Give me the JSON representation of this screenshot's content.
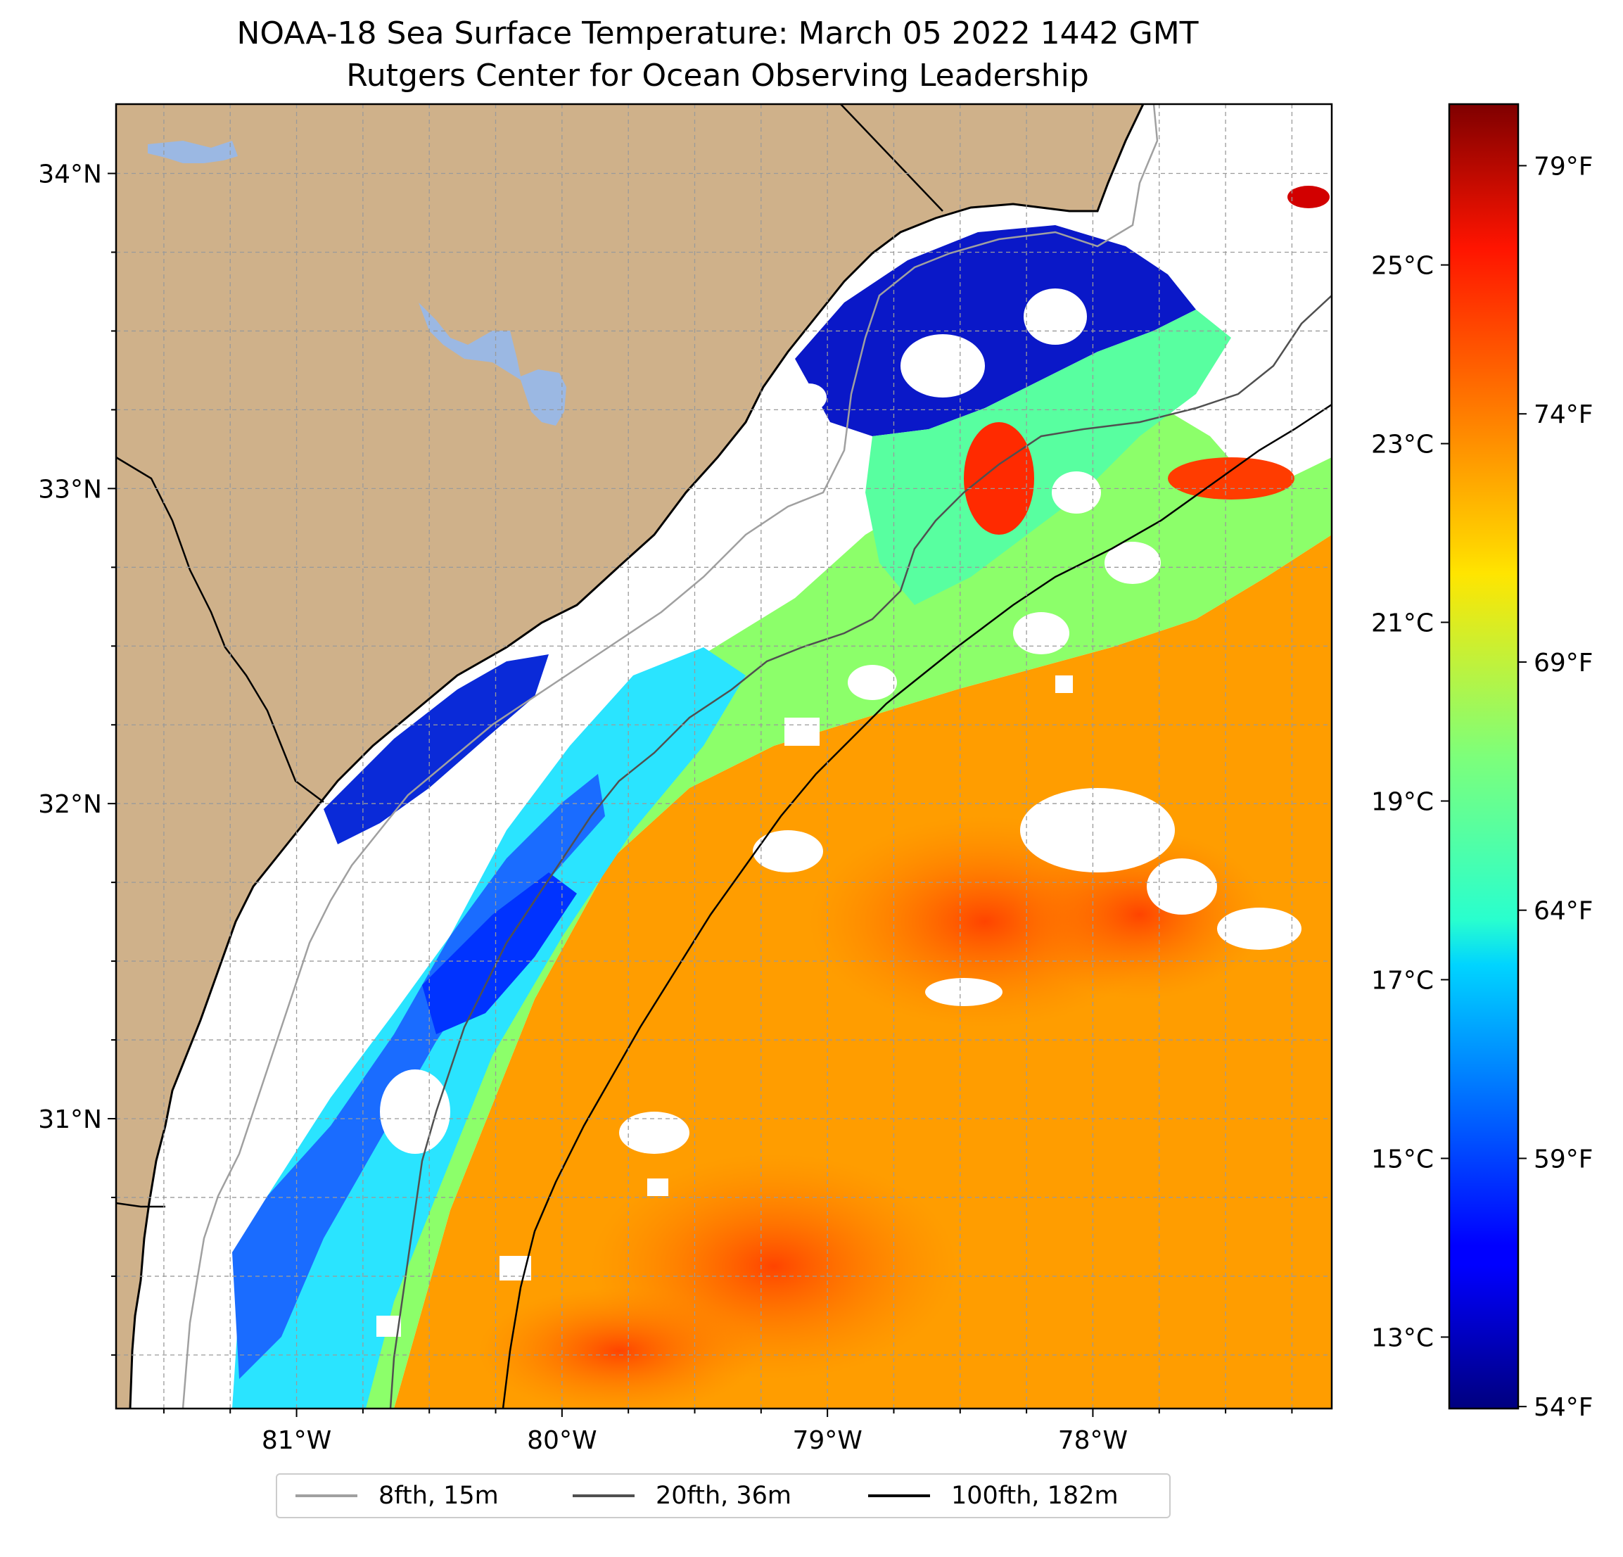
{
  "title_line1": "NOAA-18 Sea Surface Temperature: March 05 2022 1442 GMT",
  "title_line2": "Rutgers Center for Ocean Observing Leadership",
  "map": {
    "lon_range": [
      -81.68,
      -77.1
    ],
    "lat_range": [
      30.08,
      34.22
    ],
    "lat_ticks": [
      {
        "value": 34,
        "label": "34°N"
      },
      {
        "value": 33,
        "label": "33°N"
      },
      {
        "value": 32,
        "label": "32°N"
      },
      {
        "value": 31,
        "label": "31°N"
      }
    ],
    "lon_ticks": [
      {
        "value": -81,
        "label": "81°W"
      },
      {
        "value": -80,
        "label": "80°W"
      },
      {
        "value": -79,
        "label": "79°W"
      },
      {
        "value": -78,
        "label": "78°W"
      }
    ],
    "gridlines": true,
    "land_color": "#cfb18a",
    "lake_color": "#9bb8e3",
    "ocean_nodata_color": "#ffffff"
  },
  "colorbar": {
    "colormap": "jet",
    "range_c": [
      12.2,
      26.8
    ],
    "celsius_ticks": [
      {
        "value": 25,
        "label": "25°C"
      },
      {
        "value": 23,
        "label": "23°C"
      },
      {
        "value": 21,
        "label": "21°C"
      },
      {
        "value": 19,
        "label": "19°C"
      },
      {
        "value": 17,
        "label": "17°C"
      },
      {
        "value": 15,
        "label": "15°C"
      },
      {
        "value": 13,
        "label": "13°C"
      }
    ],
    "fahrenheit_ticks": [
      {
        "value": 79,
        "label": "79°F"
      },
      {
        "value": 74,
        "label": "74°F"
      },
      {
        "value": 69,
        "label": "69°F"
      },
      {
        "value": 64,
        "label": "64°F"
      },
      {
        "value": 59,
        "label": "59°F"
      },
      {
        "value": 54,
        "label": "54°F"
      }
    ]
  },
  "legend": [
    {
      "label": "8fth, 15m",
      "color": "#a0a0a0"
    },
    {
      "label": "20fth, 36m",
      "color": "#505050"
    },
    {
      "label": "100fth, 182m",
      "color": "#000000"
    }
  ]
}
